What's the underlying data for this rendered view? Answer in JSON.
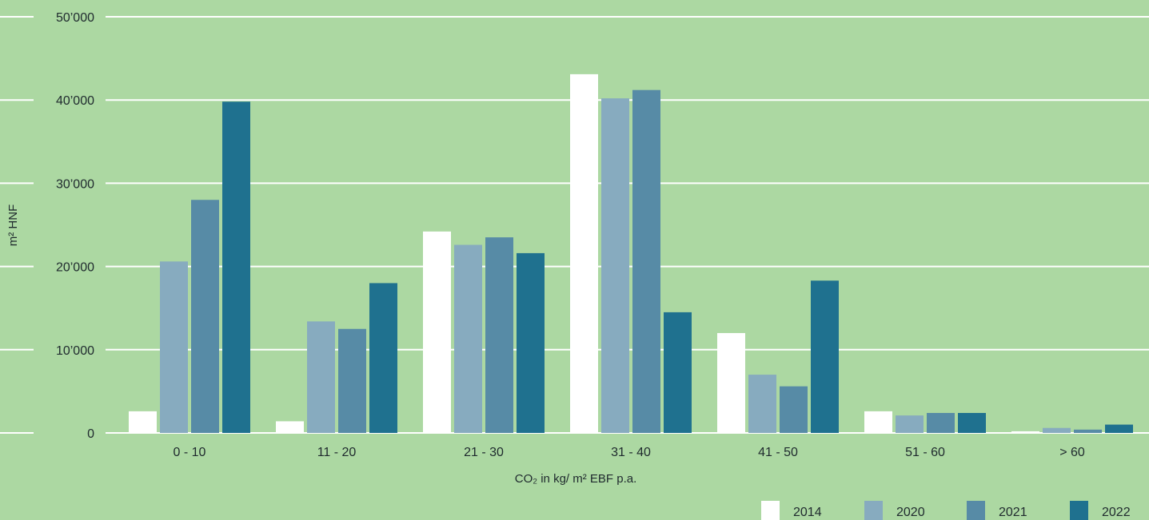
{
  "chart_data": {
    "type": "bar",
    "title": "",
    "xlabel": "CO₂ in kg/ m² EBF p.a.",
    "ylabel": "m² HNF",
    "ylim": [
      0,
      50000
    ],
    "y_ticks": [
      {
        "value": 0,
        "label": "0"
      },
      {
        "value": 10000,
        "label": "10’000"
      },
      {
        "value": 20000,
        "label": "20’000"
      },
      {
        "value": 30000,
        "label": "30’000"
      },
      {
        "value": 40000,
        "label": "40’000"
      },
      {
        "value": 50000,
        "label": "50’000"
      }
    ],
    "grid": true,
    "legend_position": "bottom-right",
    "categories": [
      "0 - 10",
      "11 - 20",
      "21 - 30",
      "31 - 40",
      "41 - 50",
      "51 - 60",
      "> 60"
    ],
    "series": [
      {
        "name": "2014",
        "color": "#ffffff",
        "values": [
          2600,
          1400,
          24200,
          43100,
          12000,
          2600,
          200
        ]
      },
      {
        "name": "2020",
        "color": "#87abbf",
        "values": [
          20600,
          13400,
          22600,
          40200,
          7000,
          2100,
          600
        ]
      },
      {
        "name": "2021",
        "color": "#578ba6",
        "values": [
          28000,
          12500,
          23500,
          41200,
          5600,
          2400,
          400
        ]
      },
      {
        "name": "2022",
        "color": "#1f718f",
        "values": [
          39800,
          18000,
          21600,
          14500,
          18300,
          2400,
          1000
        ]
      }
    ]
  }
}
